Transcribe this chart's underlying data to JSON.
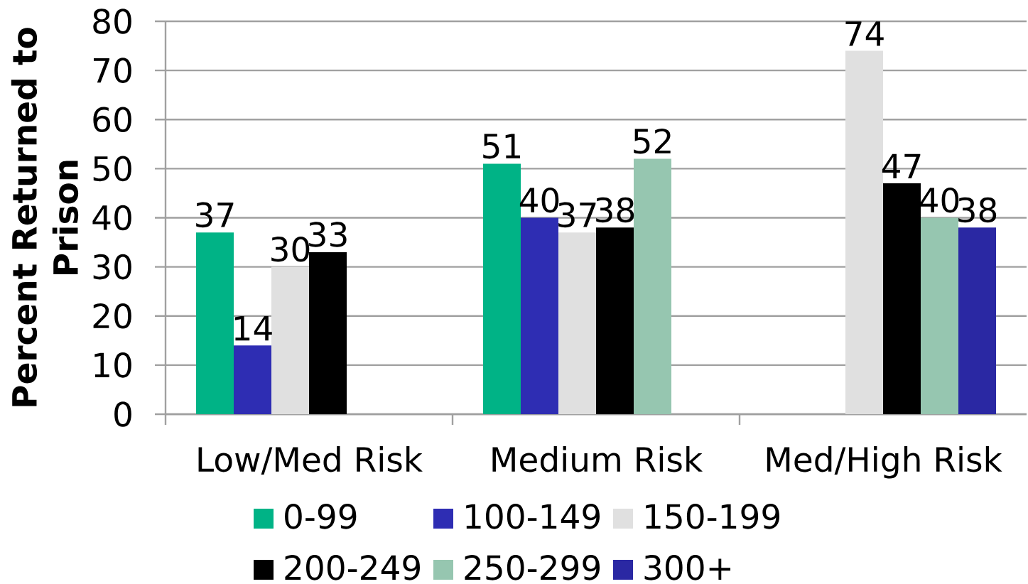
{
  "chart_data": {
    "type": "bar",
    "ylabel": "Percent Returned to Prison",
    "categories": [
      "Low/Med Risk",
      "Medium Risk",
      "Med/High Risk"
    ],
    "series": [
      {
        "name": "0-99",
        "color": "#00b386",
        "values": [
          37,
          51,
          null
        ]
      },
      {
        "name": "100-149",
        "color": "#2e2db3",
        "values": [
          14,
          40,
          null
        ]
      },
      {
        "name": "150-199",
        "color": "#e0e0e0",
        "values": [
          30,
          37,
          74
        ]
      },
      {
        "name": "200-249",
        "color": "#000000",
        "values": [
          33,
          38,
          47
        ]
      },
      {
        "name": "250-299",
        "color": "#96c6b0",
        "values": [
          null,
          52,
          40
        ]
      },
      {
        "name": "300+",
        "color": "#2a28a3",
        "values": [
          null,
          null,
          38
        ]
      }
    ],
    "ylim": [
      0,
      80
    ],
    "yticks": [
      0,
      10,
      20,
      30,
      40,
      50,
      60,
      70,
      80
    ],
    "grid": "y",
    "legend": "bottom",
    "data_labels": true
  }
}
